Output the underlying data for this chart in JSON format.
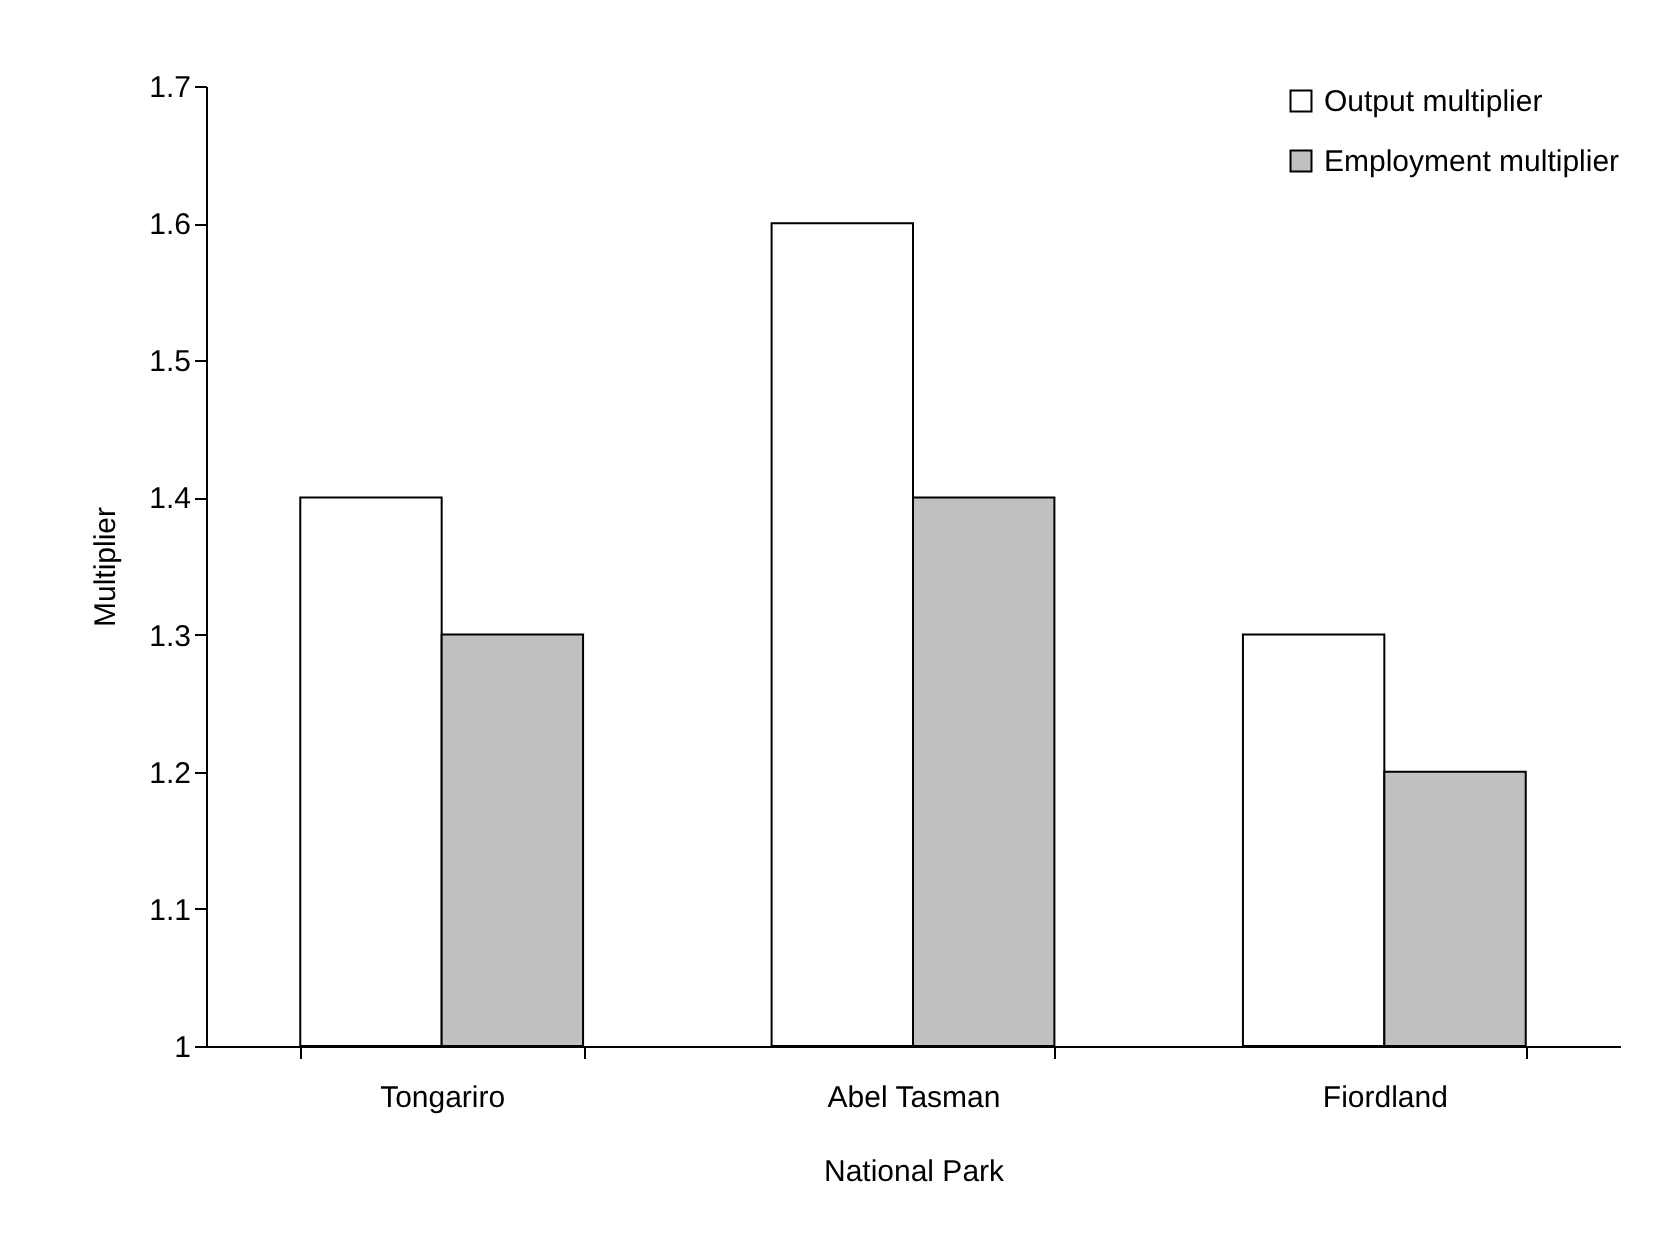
{
  "chart_data": {
    "type": "bar",
    "xlabel": "National Park",
    "ylabel": "Multiplier",
    "categories": [
      "Tongariro",
      "Abel Tasman",
      "Fiordland"
    ],
    "series": [
      {
        "name": "Output multiplier",
        "color": "#ffffff",
        "values": [
          1.4,
          1.6,
          1.3
        ]
      },
      {
        "name": "Employment multiplier",
        "color": "#c0c0c0",
        "values": [
          1.3,
          1.4,
          1.2
        ]
      }
    ],
    "ylim": [
      1,
      1.7
    ],
    "yticks": [
      1,
      1.1,
      1.2,
      1.3,
      1.4,
      1.5,
      1.6,
      1.7
    ],
    "legend": "top right"
  }
}
